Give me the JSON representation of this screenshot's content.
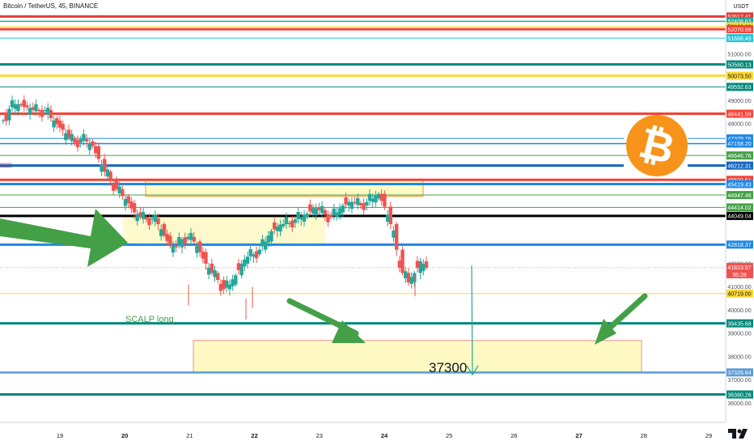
{
  "header": {
    "title": "Bitcoin / TetherUS, 45, BINANCE",
    "currency": "USDT"
  },
  "chart_data": {
    "type": "candlestick",
    "symbol": "Bitcoin / TetherUS",
    "interval": "45",
    "exchange": "BINANCE",
    "ylim": [
      35600,
      52700
    ],
    "x_ticks": [
      {
        "label": "19",
        "bold": false
      },
      {
        "label": "20",
        "bold": true
      },
      {
        "label": "21",
        "bold": false
      },
      {
        "label": "22",
        "bold": true
      },
      {
        "label": "23",
        "bold": false
      },
      {
        "label": "24",
        "bold": true
      },
      {
        "label": "25",
        "bold": false
      },
      {
        "label": "26",
        "bold": false
      },
      {
        "label": "27",
        "bold": true
      },
      {
        "label": "28",
        "bold": false
      },
      {
        "label": "29",
        "bold": false
      }
    ],
    "y_ticks": [
      "51000.00",
      "49000.00",
      "48000.00",
      "42000.00",
      "41000.00",
      "40000.00",
      "39000.00",
      "38000.00",
      "37000.00",
      "36000.00"
    ],
    "price_levels": [
      {
        "price": 52617.41,
        "label": "52617.41",
        "color": "#e53935"
      },
      {
        "price": 52408.63,
        "label": "52408.63",
        "color": "#26a69a"
      },
      {
        "price": 52189.28,
        "label": "52189.28",
        "color": "#fdd835"
      },
      {
        "price": 52070.99,
        "label": "52070.99",
        "color": "#f44336"
      },
      {
        "price": 51688.49,
        "label": "51688.49",
        "color": "#26c6da"
      },
      {
        "price": 50560.13,
        "label": "50560.13",
        "color": "#00897b"
      },
      {
        "price": 50073.5,
        "label": "50073.50",
        "color": "#fdd835"
      },
      {
        "price": 49592.63,
        "label": "49592.63",
        "color": "#00897b"
      },
      {
        "price": 48441.59,
        "label": "48441.59",
        "color": "#f44336"
      },
      {
        "price": 47379.76,
        "label": "47379.76",
        "color": "#1e88e5"
      },
      {
        "price": 47158.2,
        "label": "47158.20",
        "color": "#1e88e5"
      },
      {
        "price": 46646.76,
        "label": "46646.76",
        "color": "#43a047"
      },
      {
        "price": 46212.31,
        "label": "46212.31",
        "color": "#1565c0"
      },
      {
        "price": 45599.51,
        "label": "45599.51",
        "color": "#f44336"
      },
      {
        "price": 45419.43,
        "label": "45419.43",
        "color": "#1e88e5"
      },
      {
        "price": 44947.46,
        "label": "44947.46",
        "color": "#43a047"
      },
      {
        "price": 44414.02,
        "label": "44414.02",
        "color": "#43a047"
      },
      {
        "price": 44049.04,
        "label": "44049.04",
        "color": "#000000"
      },
      {
        "price": 42818.37,
        "label": "42818.37",
        "color": "#1e88e5"
      },
      {
        "price": 40719.0,
        "label": "40719.00",
        "color": "#fdd835"
      },
      {
        "price": 39435.68,
        "label": "39435.68",
        "color": "#00897b"
      },
      {
        "price": 37326.84,
        "label": "37326.84",
        "color": "#5b9bd5"
      },
      {
        "price": 36380.26,
        "label": "36380.26",
        "color": "#00897b"
      }
    ],
    "last_price": {
      "price": 41823.57,
      "label": "41823.57",
      "countdown": "35:28",
      "color": "#ef5350"
    },
    "annotations": {
      "scalp_text": "SCALP long",
      "target_text": "37300",
      "target_zone": {
        "from": 37300,
        "to": 38700
      },
      "resistance_zone": {
        "from": 44900,
        "to": 45600
      }
    },
    "bull_candle_color": "#26a69a",
    "bear_candle_color": "#ef5350",
    "arrow_color": "#43a047",
    "zone_fill": "#fff9c4"
  }
}
